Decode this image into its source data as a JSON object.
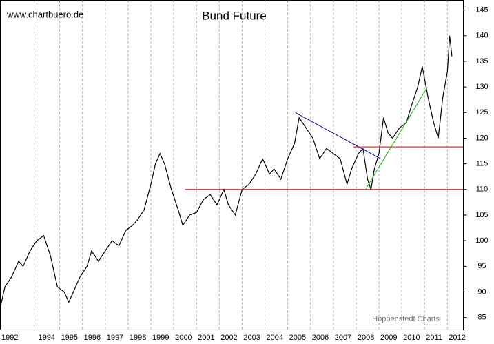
{
  "chart_data": {
    "type": "line",
    "title": "Bund Future",
    "watermark": "www.chartbuero.de",
    "source": "Hoppenstedt Charts",
    "x": [
      1992.4,
      1992.6,
      1992.9,
      1993.2,
      1993.4,
      1993.7,
      1994.0,
      1994.3,
      1994.6,
      1994.9,
      1995.2,
      1995.4,
      1995.6,
      1995.9,
      1996.2,
      1996.4,
      1996.7,
      1997.0,
      1997.3,
      1997.6,
      1997.9,
      1998.2,
      1998.4,
      1998.7,
      1999.0,
      1999.2,
      1999.4,
      1999.6,
      1999.9,
      2000.2,
      2000.4,
      2000.7,
      2001.0,
      2001.3,
      2001.6,
      2001.9,
      2002.2,
      2002.4,
      2002.7,
      2003.0,
      2003.3,
      2003.6,
      2003.9,
      2004.2,
      2004.4,
      2004.7,
      2005.0,
      2005.3,
      2005.5,
      2005.8,
      2006.1,
      2006.4,
      2006.7,
      2007.0,
      2007.3,
      2007.6,
      2007.8,
      2008.1,
      2008.3,
      2008.5,
      2008.65,
      2008.8,
      2009.0,
      2009.2,
      2009.4,
      2009.6,
      2009.9,
      2010.2,
      2010.4,
      2010.7,
      2010.9,
      2011.15,
      2011.4,
      2011.6,
      2011.8,
      2012.0,
      2012.1,
      2012.2
    ],
    "series": [
      {
        "name": "Bund Future",
        "color": "#000000",
        "values": [
          87,
          91,
          93,
          96,
          95,
          98,
          100,
          101,
          97,
          91,
          90,
          88,
          90,
          93,
          95,
          98,
          96,
          98,
          100,
          99,
          102,
          103,
          104,
          106,
          111,
          115,
          117,
          115,
          110,
          106,
          103,
          105,
          105.5,
          108,
          109,
          107,
          110,
          107,
          105,
          110,
          111,
          113,
          116,
          113,
          114,
          112,
          116,
          119,
          124,
          122,
          120,
          116,
          118,
          117,
          116,
          111,
          114,
          117,
          118,
          112,
          110,
          114,
          117,
          124,
          121,
          120,
          122,
          123,
          126,
          130,
          134,
          128,
          123,
          120,
          128,
          133,
          140,
          136
        ]
      }
    ],
    "trendlines": [
      {
        "color": "#0000cc",
        "x": [
          2005.33,
          2009.07
        ],
        "values": [
          125,
          116
        ]
      },
      {
        "color": "#dd0000",
        "x": [
          2000.5,
          2012.7
        ],
        "values": [
          110,
          110
        ]
      },
      {
        "color": "#dd0000",
        "x": [
          2007.87,
          2012.7
        ],
        "values": [
          118.3,
          118.3
        ]
      },
      {
        "color": "#00bb00",
        "x": [
          2008.41,
          2011.13
        ],
        "values": [
          110,
          130
        ]
      }
    ],
    "xlim": [
      1992.4,
      2012.7
    ],
    "xticks": [
      1992,
      1994,
      1995,
      1996,
      1997,
      1998,
      1999,
      2000,
      2001,
      2002,
      2003,
      2004,
      2005,
      2006,
      2007,
      2008,
      2009,
      2010,
      2011,
      2012
    ],
    "ylim": [
      82.6,
      146.9
    ],
    "yticks": [
      85,
      90,
      95,
      100,
      105,
      110,
      115,
      120,
      125,
      130,
      135,
      140,
      145
    ],
    "grid": true
  }
}
